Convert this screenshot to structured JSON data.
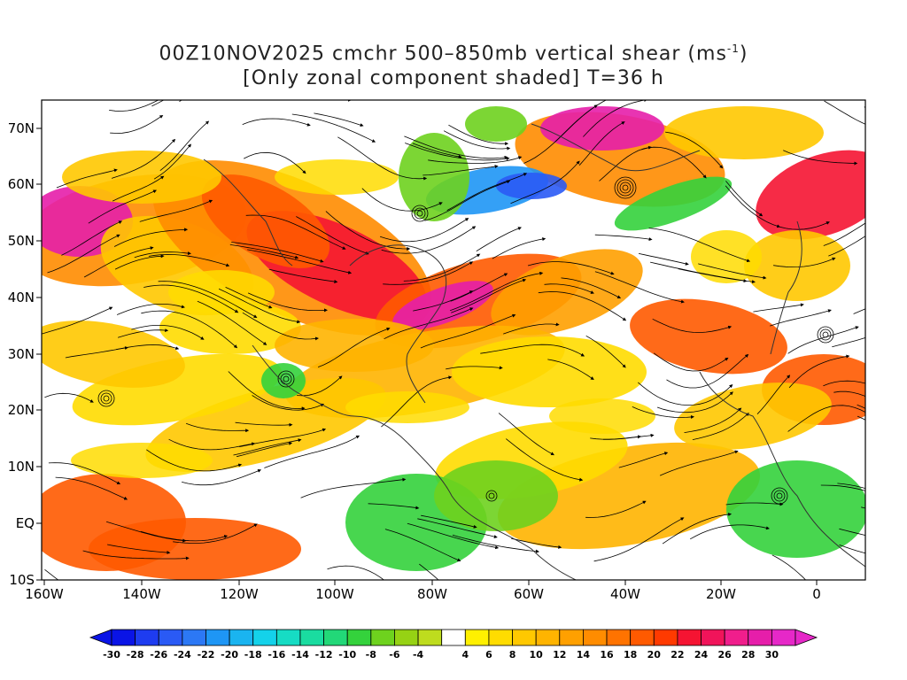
{
  "title": {
    "line1_prefix": "00Z10NOV2025 cmchr 500–850mb vertical shear (ms",
    "line1_sup": "-1",
    "line1_suffix": ")",
    "line2": "[Only zonal component shaded] T=36 h"
  },
  "map": {
    "lat_labels": [
      "70N",
      "60N",
      "50N",
      "40N",
      "30N",
      "20N",
      "10N",
      "EQ",
      "10S"
    ],
    "lon_labels": [
      "160W",
      "140W",
      "120W",
      "100W",
      "80W",
      "60W",
      "40W",
      "20W",
      "0"
    ]
  },
  "colorbar": {
    "labels": [
      "-30",
      "-28",
      "-26",
      "-24",
      "-22",
      "-20",
      "-18",
      "-16",
      "-14",
      "-12",
      "-10",
      "-8",
      "-6",
      "-4",
      "4",
      "6",
      "8",
      "10",
      "12",
      "14",
      "16",
      "18",
      "20",
      "22",
      "24",
      "26",
      "28",
      "30"
    ],
    "colors": [
      "#0a14e6",
      "#1e3cf0",
      "#2a5af5",
      "#2c78f5",
      "#1e96f5",
      "#1ab4f0",
      "#14d2ea",
      "#16dcc4",
      "#1adca0",
      "#22d878",
      "#34d23c",
      "#6ed21e",
      "#96d214",
      "#bedc1e",
      "#ffffff",
      "#fff000",
      "#ffdc00",
      "#ffc800",
      "#ffb400",
      "#ffa000",
      "#ff8c00",
      "#ff7300",
      "#ff5a00",
      "#ff3a00",
      "#f51432",
      "#f0145a",
      "#f01e8c",
      "#e61eaa",
      "#e628c8"
    ]
  }
}
